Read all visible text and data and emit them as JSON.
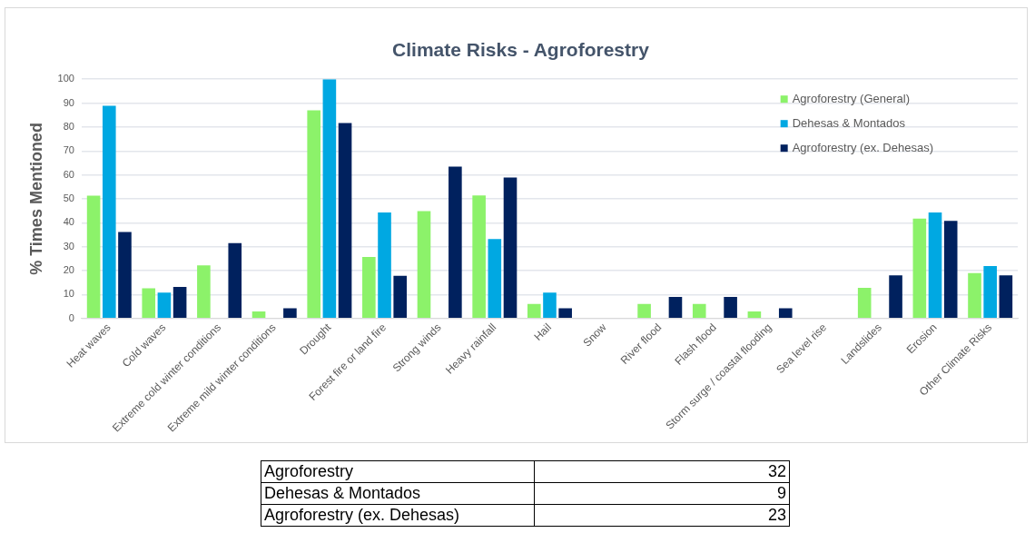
{
  "chart_data": {
    "type": "bar",
    "title": "Climate Risks - Agroforestry",
    "ylabel": "% Times Mentioned",
    "categories": [
      "Heat waves",
      "Cold waves",
      "Extreme cold winter conditions",
      "Extreme mild winter conditions",
      "Drought",
      "Forest fire or land fire",
      "Strong winds",
      "Heavy rainfall",
      "Hail",
      "Snow",
      "River flood",
      "Flash flood",
      "Storm surge / coastal flooding",
      "Sea level rise",
      "Landslides",
      "Erosion",
      "Other Climate Risks"
    ],
    "series": [
      {
        "name": "Agroforestry (General)",
        "color": "#8cf26a",
        "values": [
          51.3,
          12.6,
          22.2,
          2.9,
          87,
          25.7,
          44.9,
          51.4,
          6.1,
          0,
          6.1,
          6.1,
          2.9,
          0,
          12.8,
          41.7,
          19
        ]
      },
      {
        "name": "Dehesas & Montados",
        "color": "#00a8e2",
        "values": [
          88.9,
          10.8,
          0,
          0,
          100,
          44.3,
          0,
          33.2,
          10.8,
          0,
          0,
          0,
          0,
          0,
          0,
          44.3,
          21.9
        ]
      },
      {
        "name": "Agroforestry (ex. Dehesas)",
        "color": "#00215e",
        "values": [
          36.1,
          13.2,
          31.5,
          4.3,
          81.7,
          17.8,
          63.5,
          58.9,
          4.3,
          0,
          9,
          9,
          4.3,
          0,
          18,
          40.8,
          18
        ]
      }
    ],
    "ylim": [
      0,
      100
    ],
    "yticks": [
      0,
      10,
      20,
      30,
      40,
      50,
      60,
      70,
      80,
      90,
      100
    ],
    "grid": "y",
    "legend": "top right",
    "annotations": [
      "Agroforestry",
      "32",
      "Dehesas & Montados",
      "9",
      "Agroforestry (ex. Dehesas)",
      "23"
    ]
  }
}
